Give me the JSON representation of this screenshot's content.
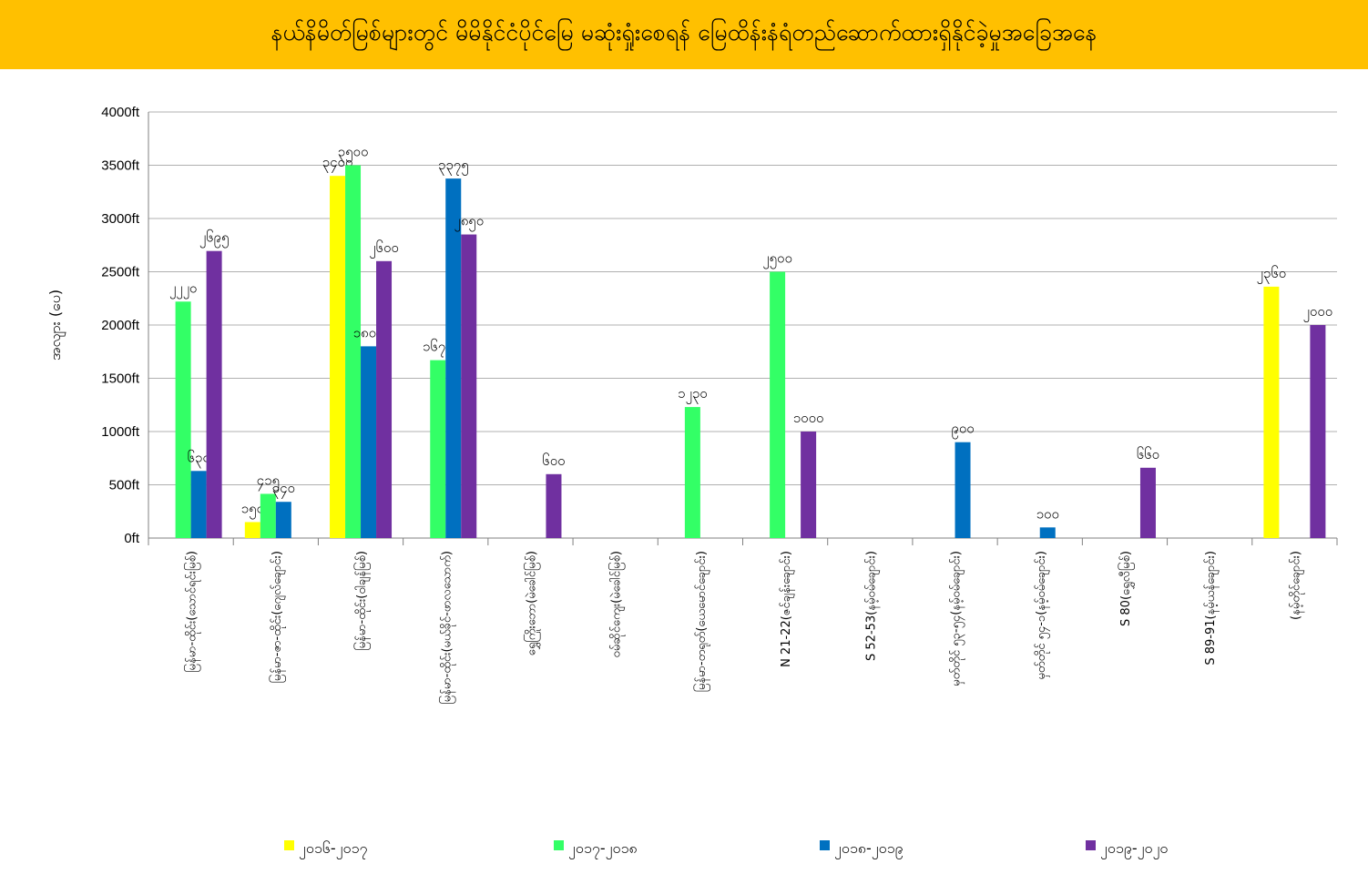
{
  "chart_data": {
    "type": "bar",
    "title": "နယ်နိမိတ်မြစ်များတွင် မိမိနိုင်ငံပိုင်မြေ မဆုံးရှုံးစေရန် မြေထိန်းနံရံတည်ဆောက်ထားရှိနိုင်ခဲ့မှုအခြေအနေ",
    "xlabel": "",
    "ylabel": "အလျား (ပေ)",
    "ylim": [
      0,
      4000
    ],
    "y_ticks": [
      "0ft",
      "500ft",
      "1000ft",
      "1500ft",
      "2000ft",
      "2500ft",
      "3000ft",
      "3500ft",
      "4000ft"
    ],
    "grid": true,
    "legend_position": "bottom",
    "categories": [
      "မြန်မာ-ထိုင်း(သောင်ရင်းမြစ်)",
      "မြန်မာ-ဇာ-ထိုင်း(ဂျေလ်ချောင်း)",
      "မြန်မာ-ထိုင်း(ဝါချန်မြစ်)",
      "မြန်မာ-ထိုင်း(မယ်ခိုင်-ဖာလသောက်)",
      "ရွှေကြိုးဘော(မဲခေါင်မြစ်)",
      "ဝမ်ဆိုင်ကျေး(မဲခေါင်မြစ်)",
      "မြန်မာ-တရုတ်(ယေမောင်ချောင်း)",
      "N 21-22(ဇင်ချန်းချောင်း)",
      "S 52-53(နမ့်ဝမ်ချောင်း)",
      "မှတ်တိုင် ၅၃-၅၄(နမ့်ဝမ်ချောင်း)",
      "မှတ်တိုင် ၅၄-၁(နမ့်ဝမ်ချောင်း)",
      "S 80(ရွှေလီမြစ်)",
      "S 89-91(နမ့်ယန်ချောင်း)",
      "(နမ့်တိုင်ချောင်း)"
    ],
    "series": [
      {
        "name": "၂၀၁၆-၂၀၁၇",
        "color": "#ffff00",
        "values": [
          null,
          150,
          3400,
          null,
          null,
          null,
          null,
          null,
          null,
          null,
          null,
          null,
          null,
          2360
        ],
        "labels": [
          null,
          "၁၅၀",
          "၃၄၀၀",
          null,
          null,
          null,
          null,
          null,
          null,
          null,
          null,
          null,
          null,
          "၂၃၆၀"
        ]
      },
      {
        "name": "၂၀၁၇-၂၀၁၈",
        "color": "#33ff66",
        "values": [
          2220,
          415,
          3500,
          1670,
          null,
          null,
          1230,
          2500,
          null,
          null,
          null,
          null,
          null,
          null
        ],
        "labels": [
          "၂၂၂၀",
          "၄၁၅",
          "၃၅၀၀",
          "၁၆၇၀",
          null,
          null,
          "၁၂၃၀",
          "၂၅၀၀",
          null,
          null,
          null,
          null,
          null,
          null
        ]
      },
      {
        "name": "၂၀၁၈-၂၀၁၉",
        "color": "#0070c0",
        "values": [
          630,
          340,
          1800,
          3375,
          null,
          null,
          null,
          null,
          null,
          900,
          100,
          null,
          null,
          null
        ],
        "labels": [
          "၆၃၀",
          "၃၄၀",
          "၁၈၀၀",
          "၃၃၇၅",
          null,
          null,
          null,
          null,
          null,
          "၉၀၀",
          "၁၀၀",
          null,
          null,
          null
        ]
      },
      {
        "name": "၂၀၁၉-၂၀၂၀",
        "color": "#7030a0",
        "values": [
          2695,
          null,
          2600,
          2850,
          600,
          null,
          null,
          1000,
          null,
          null,
          null,
          660,
          null,
          2000
        ],
        "labels": [
          "၂၆၉၅",
          null,
          "၂၆၀၀",
          "၂၈၅၀",
          "၆၀၀",
          null,
          null,
          "၁၀၀၀",
          null,
          null,
          null,
          "၆၆၀",
          null,
          "၂၀၀၀"
        ]
      }
    ]
  }
}
